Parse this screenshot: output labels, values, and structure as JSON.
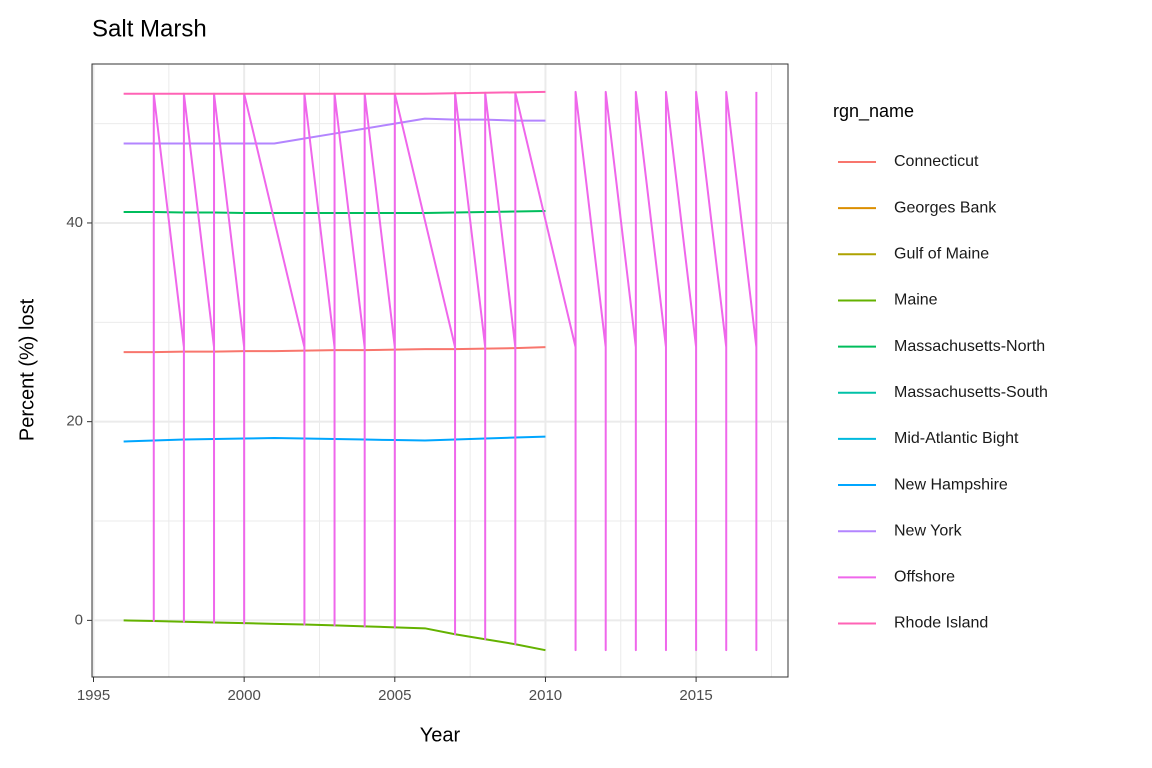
{
  "chart_data": {
    "type": "line",
    "title": "Salt Marsh",
    "x_label": "Year",
    "y_label": "Percent (%) lost",
    "legend_title": "rgn_name",
    "grid": true,
    "legend_position": "right",
    "xlim": [
      1994.95,
      2018.05
    ],
    "ylim": [
      -5.7,
      56
    ],
    "xticks": [
      1995,
      2000,
      2005,
      2010,
      2015
    ],
    "yticks": [
      0,
      20,
      40
    ],
    "x": [
      1996,
      1997,
      1998,
      1999,
      2000,
      2001,
      2002,
      2003,
      2004,
      2005,
      2006,
      2007,
      2008,
      2009,
      2010
    ],
    "series": [
      {
        "name": "Connecticut",
        "color": "#F8766D",
        "values": [
          27.0,
          27.0,
          27.05,
          27.05,
          27.1,
          27.1,
          27.15,
          27.2,
          27.2,
          27.25,
          27.3,
          27.3,
          27.35,
          27.4,
          27.5
        ]
      },
      {
        "name": "Georges Bank",
        "color": "#DB8E00",
        "values": [
          null,
          null,
          null,
          null,
          null,
          null,
          null,
          null,
          null,
          null,
          null,
          null,
          null,
          null,
          null
        ]
      },
      {
        "name": "Gulf of Maine",
        "color": "#AEA200",
        "values": [
          null,
          null,
          null,
          null,
          null,
          null,
          null,
          null,
          null,
          null,
          null,
          null,
          null,
          null,
          null
        ]
      },
      {
        "name": "Maine",
        "color": "#64B200",
        "values": [
          0,
          -0.07,
          -0.14,
          -0.21,
          -0.28,
          -0.35,
          -0.42,
          -0.5,
          -0.6,
          -0.7,
          -0.8,
          -1.4,
          -1.9,
          -2.4,
          -3.0
        ]
      },
      {
        "name": "Massachusetts-North",
        "color": "#00BD5C",
        "values": [
          41.1,
          41.1,
          41.05,
          41.05,
          41,
          41,
          41,
          41,
          41,
          41,
          41,
          41.05,
          41.1,
          41.15,
          41.2
        ]
      },
      {
        "name": "Massachusetts-South",
        "color": "#00C1A7",
        "values": [
          null,
          null,
          null,
          null,
          null,
          null,
          null,
          null,
          null,
          null,
          null,
          null,
          null,
          null,
          null
        ]
      },
      {
        "name": "Mid-Atlantic Bight",
        "color": "#00BADE",
        "values": [
          null,
          null,
          null,
          null,
          null,
          null,
          null,
          null,
          null,
          null,
          null,
          null,
          null,
          null,
          null
        ]
      },
      {
        "name": "New Hampshire",
        "color": "#00A6FF",
        "values": [
          18,
          18.1,
          18.2,
          18.25,
          18.3,
          18.35,
          18.3,
          18.25,
          18.2,
          18.15,
          18.1,
          18.2,
          18.3,
          18.4,
          18.5
        ]
      },
      {
        "name": "New York",
        "color": "#B385FF",
        "values": [
          48,
          48,
          48,
          48,
          48,
          48,
          48.5,
          49,
          49.5,
          50,
          50.5,
          50.4,
          50.4,
          50.3,
          50.3
        ]
      },
      {
        "name": "Offshore",
        "color": "#EF67EB",
        "x": [
          1997,
          1997,
          1997,
          1998,
          1998,
          1998,
          1999,
          1999,
          1999,
          2000,
          2000,
          2000,
          2002,
          2002,
          2002,
          2003,
          2003,
          2003,
          2004,
          2004,
          2004,
          2005,
          2005,
          2005,
          2007,
          2007,
          2007,
          2008,
          2008,
          2008,
          2009,
          2009,
          2009,
          2011,
          2011,
          2011,
          2012,
          2012,
          2012,
          2013,
          2013,
          2013,
          2014,
          2014,
          2014,
          2015,
          2015,
          2015,
          2016,
          2016,
          2016,
          2017,
          2017,
          2017
        ],
        "values": [
          27.5,
          -0.07,
          53,
          27.5,
          -0.14,
          53,
          27.5,
          -0.21,
          53,
          27.5,
          -0.28,
          53,
          27.5,
          -0.42,
          53,
          27.5,
          -0.5,
          53,
          27.5,
          -0.6,
          53,
          27.5,
          -0.7,
          53,
          27.5,
          -1.4,
          53.1,
          27.5,
          -1.9,
          53.1,
          27.5,
          -2.4,
          53.1,
          27.5,
          -3.0,
          53.2,
          27.5,
          -3.0,
          53.2,
          27.5,
          -3.0,
          53.2,
          27.5,
          -3.0,
          53.2,
          27.5,
          -3.0,
          53.2,
          27.5,
          -3.0,
          53.2,
          27.5,
          -3.0,
          53.2
        ]
      },
      {
        "name": "Rhode Island",
        "color": "#FF63B6",
        "values": [
          53,
          53,
          53,
          53,
          53,
          53,
          53,
          53,
          53,
          53,
          53,
          53.05,
          53.1,
          53.15,
          53.2
        ]
      }
    ]
  }
}
